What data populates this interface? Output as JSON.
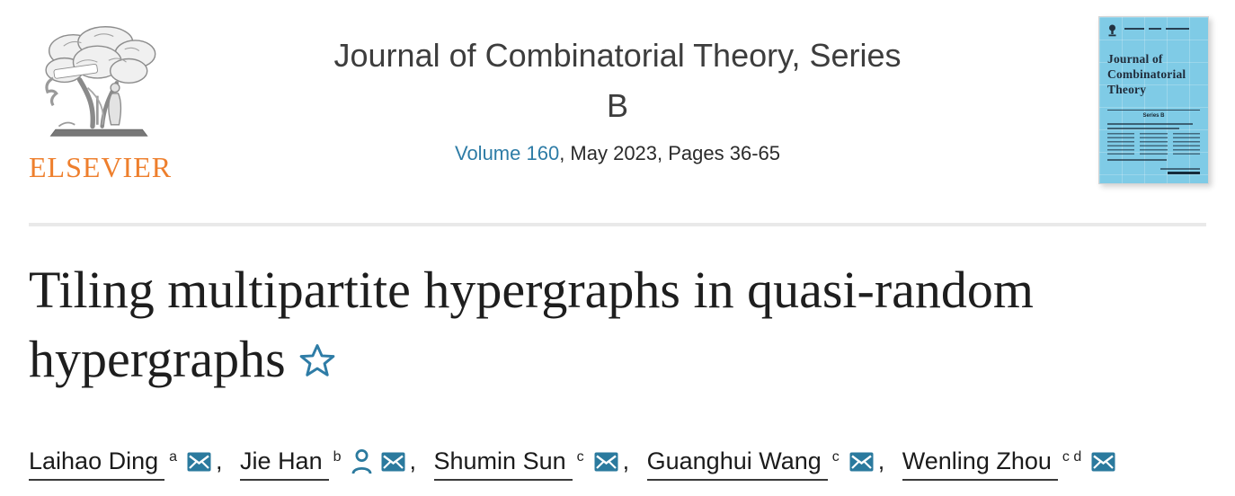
{
  "header": {
    "publisher_wordmark": "ELSEVIER",
    "journal_title_line1": "Journal of Combinatorial Theory, Series",
    "journal_title_line2": "B",
    "volume_link": "Volume 160",
    "issue_info": ", May 2023, Pages 36-65",
    "cover": {
      "title_line1": "Journal of",
      "title_line2": "Combinatorial",
      "title_line3": "Theory",
      "series": "Series B"
    }
  },
  "article": {
    "title": "Tiling multipartite hypergraphs in quasi-random hypergraphs"
  },
  "authors": [
    {
      "name": "Laihao Ding",
      "affiliations": "a",
      "icons": [
        "envelope"
      ]
    },
    {
      "name": "Jie Han",
      "affiliations": "b",
      "icons": [
        "person",
        "envelope"
      ]
    },
    {
      "name": "Shumin Sun",
      "affiliations": "c",
      "icons": [
        "envelope"
      ]
    },
    {
      "name": "Guanghui Wang",
      "affiliations": "c",
      "icons": [
        "envelope"
      ]
    },
    {
      "name": "Wenling Zhou",
      "affiliations": "c d",
      "icons": [
        "envelope"
      ]
    }
  ],
  "colors": {
    "accent_blue": "#2e7ca6",
    "elsevier_orange": "#ee7f2d",
    "cover_blue": "#7fcbe6",
    "divider_gray": "#e9e9e9"
  }
}
